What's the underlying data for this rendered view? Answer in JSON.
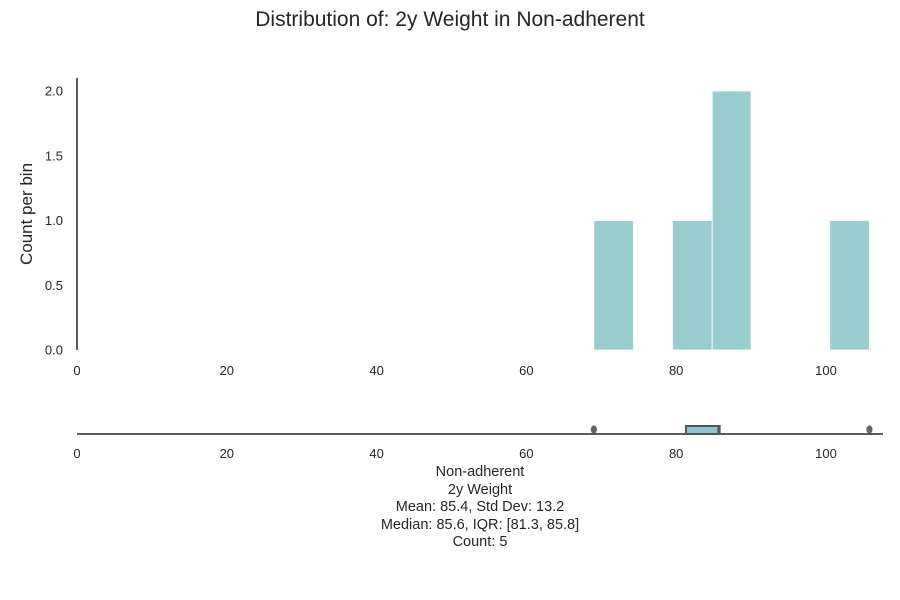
{
  "chart_data": [
    {
      "type": "histogram",
      "title": "Distribution of: 2y Weight in Non-adherent",
      "ylabel": "Count per bin",
      "xlabel": "",
      "xlim": [
        0,
        107.5
      ],
      "ylim": [
        0,
        2.1
      ],
      "xticks": [
        "0",
        "20",
        "40",
        "60",
        "80",
        "100"
      ],
      "yticks": [
        "0.0",
        "0.5",
        "1.0",
        "1.5",
        "2.0"
      ],
      "bar_color": "#9acdcf",
      "grid": false,
      "bins": [
        {
          "x0": 69.0,
          "x1": 74.3,
          "count": 1
        },
        {
          "x0": 74.3,
          "x1": 79.5,
          "count": 0
        },
        {
          "x0": 79.5,
          "x1": 84.8,
          "count": 1
        },
        {
          "x0": 84.8,
          "x1": 90.0,
          "count": 2
        },
        {
          "x0": 90.0,
          "x1": 95.3,
          "count": 0
        },
        {
          "x0": 95.3,
          "x1": 100.5,
          "count": 0
        },
        {
          "x0": 100.5,
          "x1": 105.8,
          "count": 1
        }
      ]
    },
    {
      "type": "boxplot",
      "xticks": [
        "0",
        "20",
        "40",
        "60",
        "80",
        "100"
      ],
      "box_color": "#8fc3d6",
      "whisker_low": 81.3,
      "q1": 81.3,
      "median": 85.6,
      "q3": 85.8,
      "whisker_high": 85.8,
      "outliers": [
        69.0,
        105.8
      ]
    }
  ],
  "summary": {
    "group": "Non-adherent",
    "variable": "2y Weight",
    "mean_std": "Mean: 85.4, Std Dev: 13.2",
    "median_iqr": "Median: 85.6, IQR: [81.3, 85.8]",
    "count": "Count: 5"
  }
}
